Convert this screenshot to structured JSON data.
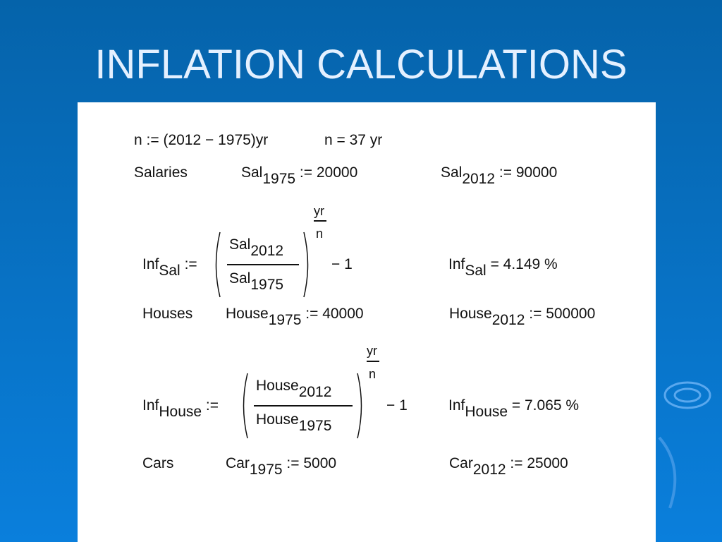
{
  "header": {
    "title": "INFLATION CALCULATIONS"
  },
  "worksheet": {
    "n_definition": {
      "text": "n := (2012 − 1975)yr",
      "result": "n = 37 yr"
    },
    "salaries": {
      "label": "Salaries",
      "start": {
        "name": "Sal",
        "sub": "1975",
        "assign": ":= 20000"
      },
      "end": {
        "name": "Sal",
        "sub": "2012",
        "assign": ":= 90000"
      }
    },
    "inf_sal": {
      "name": "Inf",
      "sub": "Sal",
      "assign": ":=",
      "numerator": {
        "name": "Sal",
        "sub": "2012"
      },
      "denominator": {
        "name": "Sal",
        "sub": "1975"
      },
      "exp_num": "yr",
      "exp_den": "n",
      "minus": "− 1",
      "result": {
        "name": "Inf",
        "sub": "Sal",
        "value": "= 4.149 %"
      }
    },
    "houses": {
      "label": "Houses",
      "start": {
        "name": "House",
        "sub": "1975",
        "assign": ":= 40000"
      },
      "end": {
        "name": "House",
        "sub": "2012",
        "assign": ":= 500000"
      }
    },
    "inf_house": {
      "name": "Inf",
      "sub": "House",
      "assign": ":=",
      "numerator": {
        "name": "House",
        "sub": "2012"
      },
      "denominator": {
        "name": "House",
        "sub": "1975"
      },
      "exp_num": "yr",
      "exp_den": "n",
      "minus": "− 1",
      "result": {
        "name": "Inf",
        "sub": "House",
        "value": "= 7.065 %"
      }
    },
    "cars": {
      "label": "Cars",
      "start": {
        "name": "Car",
        "sub": "1975",
        "assign": ":= 5000"
      },
      "end": {
        "name": "Car",
        "sub": "2012",
        "assign": ":= 25000"
      }
    }
  }
}
